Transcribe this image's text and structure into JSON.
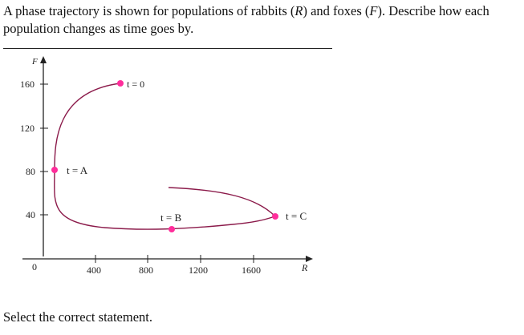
{
  "question": {
    "text_before_R": "A phase trajectory is shown for populations of rabbits (",
    "var_R": "R",
    "text_between": ") and foxes (",
    "var_F": "F",
    "text_after_F": "). Describe how each population changes as time goes by."
  },
  "graph": {
    "y_axis_label": "F",
    "x_axis_label": "R",
    "origin_label": "0",
    "y_ticks": [
      "40",
      "80",
      "120",
      "160"
    ],
    "x_ticks": [
      "400",
      "800",
      "1200",
      "1600"
    ],
    "annotations": {
      "t0": "t = 0",
      "tA": "t = A",
      "tB": "t = B",
      "tC": "t = C"
    },
    "curve_color": "#8b1a4a",
    "point_color": "#ff2d9b"
  },
  "instruction": "Select the correct statement."
}
